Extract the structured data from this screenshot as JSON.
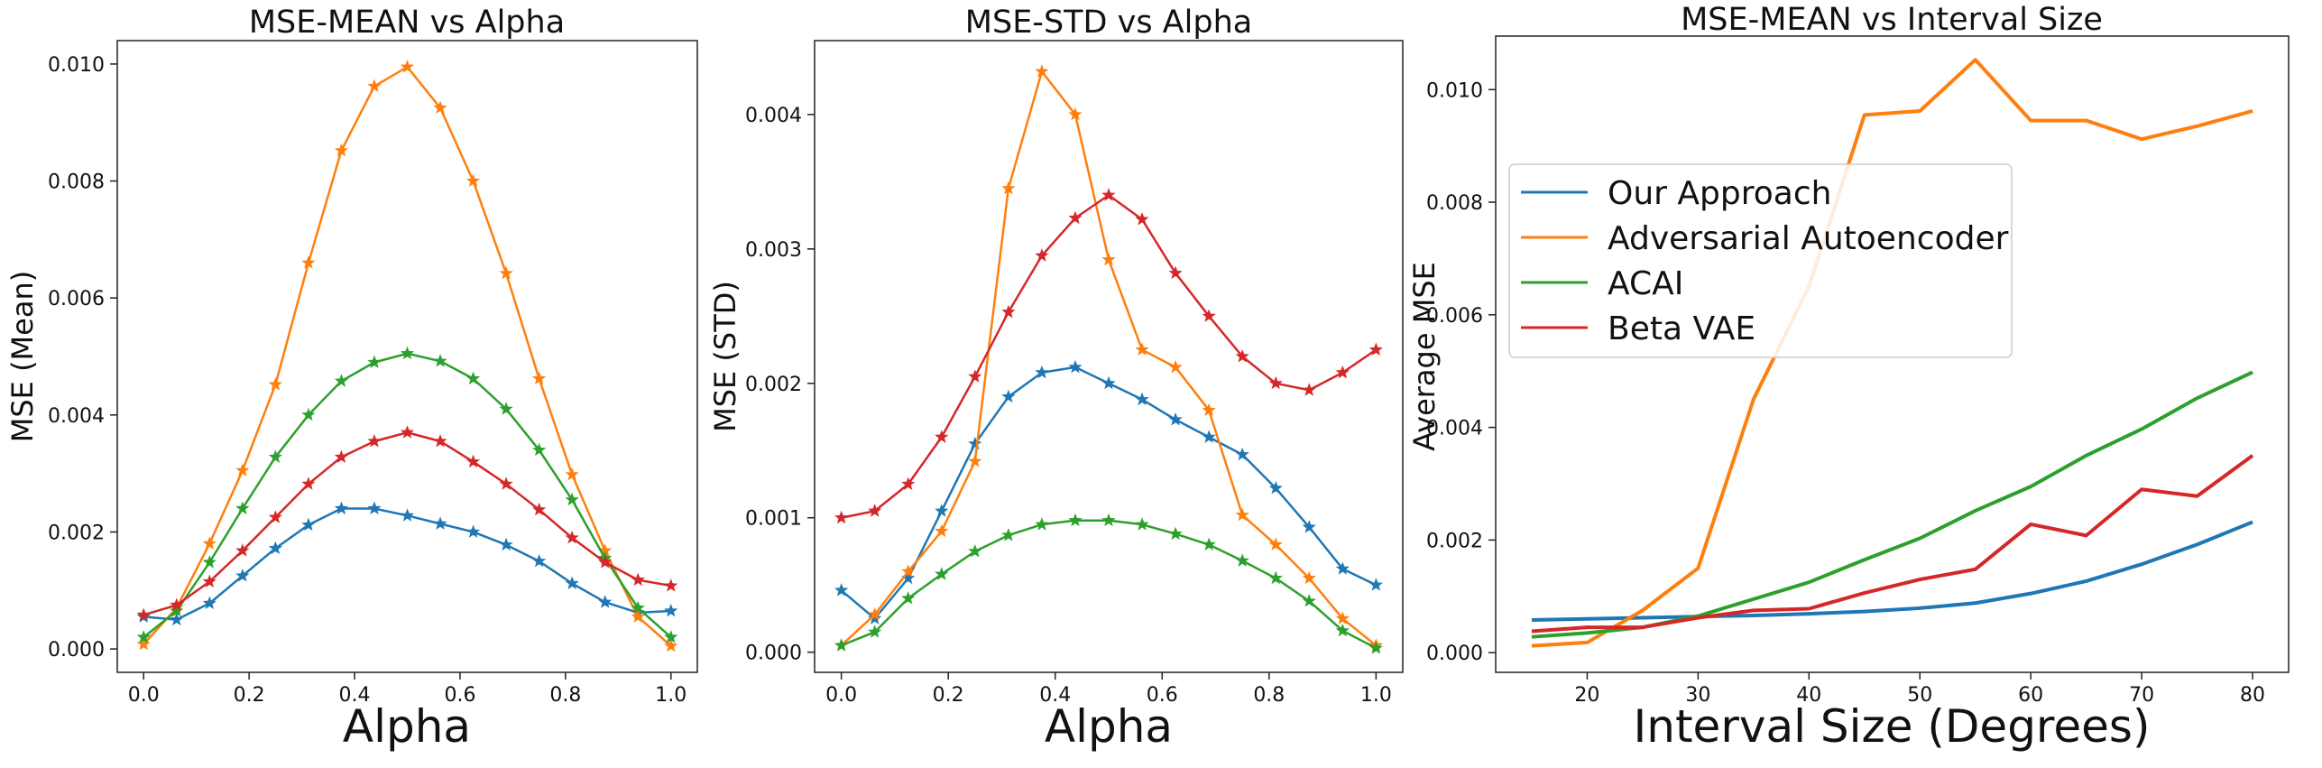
{
  "colors": {
    "Our Approach": "#1f77b4",
    "Adversarial Autoencoder": "#ff7f0e",
    "ACAI": "#2ca02c",
    "Beta VAE": "#d62728"
  },
  "chart_data": [
    {
      "type": "line",
      "title": "MSE-MEAN vs Alpha",
      "xlabel": "Alpha",
      "ylabel": "MSE (Mean)",
      "xlim": [
        -0.05,
        1.05
      ],
      "ylim": [
        -0.0004,
        0.0104
      ],
      "xticks": [
        0.0,
        0.2,
        0.4,
        0.6,
        0.8,
        1.0
      ],
      "xtick_labels": [
        "0.0",
        "0.2",
        "0.4",
        "0.6",
        "0.8",
        "1.0"
      ],
      "yticks": [
        0.0,
        0.002,
        0.004,
        0.006,
        0.008,
        0.01
      ],
      "ytick_labels": [
        "0.000",
        "0.002",
        "0.004",
        "0.006",
        "0.008",
        "0.010"
      ],
      "marker": "star",
      "x": [
        0.0,
        0.0625,
        0.125,
        0.1875,
        0.25,
        0.3125,
        0.375,
        0.4375,
        0.5,
        0.5625,
        0.625,
        0.6875,
        0.75,
        0.8125,
        0.875,
        0.9375,
        1.0
      ],
      "series": [
        {
          "name": "Our Approach",
          "values": [
            0.00055,
            0.0005,
            0.00078,
            0.00125,
            0.00172,
            0.00212,
            0.0024,
            0.0024,
            0.00228,
            0.00214,
            0.002,
            0.00178,
            0.0015,
            0.00112,
            0.0008,
            0.00062,
            0.00065
          ]
        },
        {
          "name": "Adversarial Autoencoder",
          "values": [
            8e-05,
            0.0007,
            0.0018,
            0.00305,
            0.00452,
            0.0066,
            0.00852,
            0.00962,
            0.00995,
            0.00925,
            0.008,
            0.00642,
            0.00462,
            0.00298,
            0.00168,
            0.00055,
            5e-05
          ]
        },
        {
          "name": "ACAI",
          "values": [
            0.0002,
            0.00065,
            0.00148,
            0.0024,
            0.00328,
            0.004,
            0.00458,
            0.0049,
            0.00505,
            0.00492,
            0.00462,
            0.0041,
            0.0034,
            0.00255,
            0.00155,
            0.0007,
            0.0002
          ]
        },
        {
          "name": "Beta VAE",
          "values": [
            0.00058,
            0.00075,
            0.00115,
            0.00168,
            0.00225,
            0.00282,
            0.00328,
            0.00355,
            0.0037,
            0.00355,
            0.0032,
            0.00282,
            0.00238,
            0.0019,
            0.00148,
            0.00118,
            0.00108
          ]
        }
      ]
    },
    {
      "type": "line",
      "title": "MSE-STD vs Alpha",
      "xlabel": "Alpha",
      "ylabel": "MSE (STD)",
      "xlim": [
        -0.05,
        1.05
      ],
      "ylim": [
        -0.00015,
        0.00455
      ],
      "xticks": [
        0.0,
        0.2,
        0.4,
        0.6,
        0.8,
        1.0
      ],
      "xtick_labels": [
        "0.0",
        "0.2",
        "0.4",
        "0.6",
        "0.8",
        "1.0"
      ],
      "yticks": [
        0.0,
        0.001,
        0.002,
        0.003,
        0.004
      ],
      "ytick_labels": [
        "0.000",
        "0.001",
        "0.002",
        "0.003",
        "0.004"
      ],
      "marker": "star",
      "x": [
        0.0,
        0.0625,
        0.125,
        0.1875,
        0.25,
        0.3125,
        0.375,
        0.4375,
        0.5,
        0.5625,
        0.625,
        0.6875,
        0.75,
        0.8125,
        0.875,
        0.9375,
        1.0
      ],
      "series": [
        {
          "name": "Our Approach",
          "values": [
            0.00046,
            0.00025,
            0.00055,
            0.00105,
            0.00155,
            0.0019,
            0.00208,
            0.00212,
            0.002,
            0.00188,
            0.00173,
            0.0016,
            0.00147,
            0.00122,
            0.00093,
            0.00062,
            0.0005
          ]
        },
        {
          "name": "Adversarial Autoencoder",
          "values": [
            5e-05,
            0.00028,
            0.0006,
            0.0009,
            0.00142,
            0.00345,
            0.00432,
            0.004,
            0.00292,
            0.00225,
            0.00212,
            0.0018,
            0.00102,
            0.0008,
            0.00055,
            0.00025,
            5e-05
          ]
        },
        {
          "name": "ACAI",
          "values": [
            5e-05,
            0.00015,
            0.0004,
            0.00058,
            0.00075,
            0.00087,
            0.00095,
            0.00098,
            0.00098,
            0.00095,
            0.00088,
            0.0008,
            0.00068,
            0.00055,
            0.00038,
            0.00016,
            3e-05
          ]
        },
        {
          "name": "Beta VAE",
          "values": [
            0.001,
            0.00105,
            0.00125,
            0.0016,
            0.00205,
            0.00253,
            0.00295,
            0.00323,
            0.0034,
            0.00322,
            0.00282,
            0.0025,
            0.0022,
            0.002,
            0.00195,
            0.00208,
            0.00225
          ]
        }
      ]
    },
    {
      "type": "line",
      "title": "MSE-MEAN vs Interval Size",
      "xlabel": "Interval Size (Degrees)",
      "ylabel": "Average MSE",
      "xlim": [
        11.75,
        83.25
      ],
      "ylim": [
        -0.00035,
        0.01095
      ],
      "xticks": [
        20,
        30,
        40,
        50,
        60,
        70,
        80
      ],
      "xtick_labels": [
        "20",
        "30",
        "40",
        "50",
        "60",
        "70",
        "80"
      ],
      "yticks": [
        0.0,
        0.002,
        0.004,
        0.006,
        0.008,
        0.01
      ],
      "ytick_labels": [
        "0.000",
        "0.002",
        "0.004",
        "0.006",
        "0.008",
        "0.010"
      ],
      "legend": "upper-left",
      "x": [
        15,
        20,
        25,
        30,
        35,
        40,
        45,
        50,
        55,
        60,
        65,
        70,
        75,
        80
      ],
      "series": [
        {
          "name": "Our Approach",
          "values": [
            0.00058,
            0.0006,
            0.00062,
            0.00064,
            0.00066,
            0.00069,
            0.00073,
            0.00079,
            0.00088,
            0.00105,
            0.00127,
            0.00157,
            0.00192,
            0.00232
          ]
        },
        {
          "name": "Adversarial Autoencoder",
          "values": [
            0.00012,
            0.00018,
            0.00075,
            0.0015,
            0.0045,
            0.0065,
            0.00955,
            0.00962,
            0.01053,
            0.00945,
            0.00945,
            0.00912,
            0.00935,
            0.00962
          ]
        },
        {
          "name": "ACAI",
          "values": [
            0.00028,
            0.00035,
            0.00045,
            0.00065,
            0.00095,
            0.00125,
            0.00165,
            0.00203,
            0.00252,
            0.00295,
            0.0035,
            0.00397,
            0.00452,
            0.00498
          ]
        },
        {
          "name": "Beta VAE",
          "values": [
            0.00038,
            0.00045,
            0.00045,
            0.00062,
            0.00075,
            0.00078,
            0.00106,
            0.0013,
            0.00148,
            0.00228,
            0.00208,
            0.0029,
            0.00278,
            0.0035
          ]
        }
      ]
    }
  ]
}
